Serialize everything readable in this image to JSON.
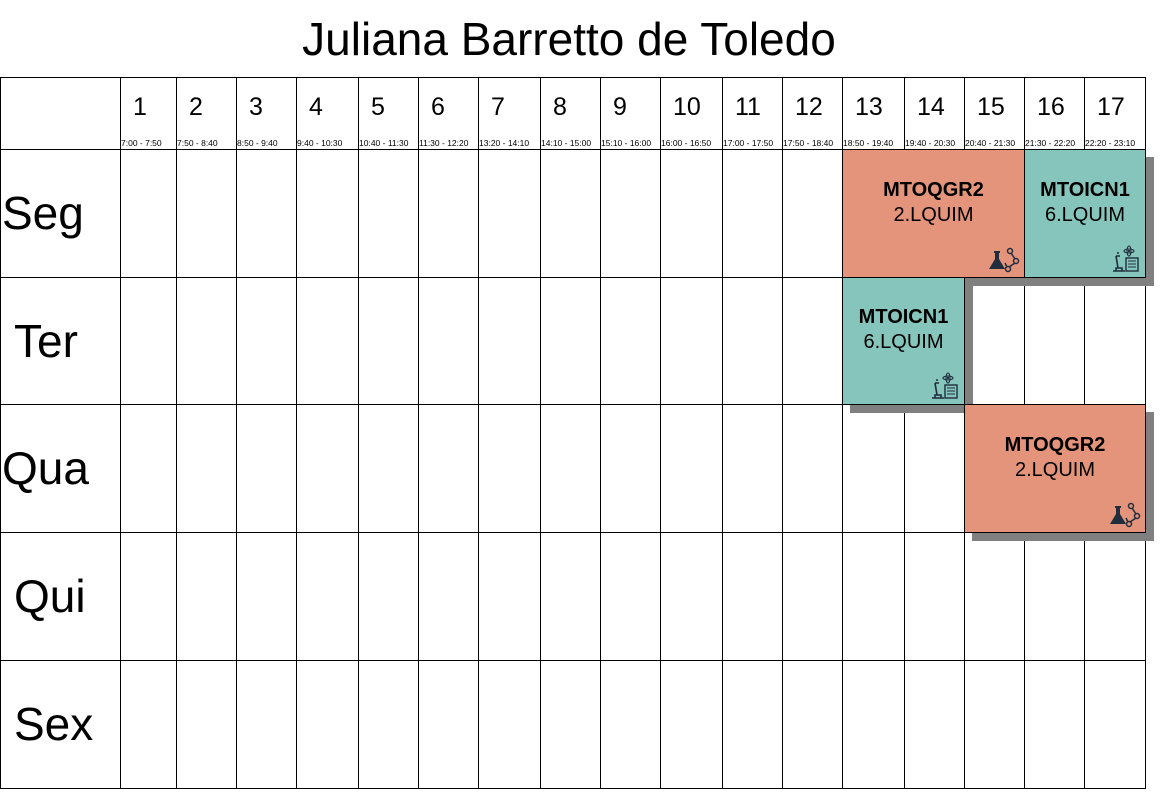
{
  "title": "Juliana Barretto de Toledo",
  "slots": [
    {
      "num": "1",
      "time": "7:00 - 7:50"
    },
    {
      "num": "2",
      "time": "7:50 - 8:40"
    },
    {
      "num": "3",
      "time": "8:50 - 9:40"
    },
    {
      "num": "4",
      "time": "9:40 - 10:30"
    },
    {
      "num": "5",
      "time": "10:40 - 11:30"
    },
    {
      "num": "6",
      "time": "11:30 - 12:20"
    },
    {
      "num": "7",
      "time": "13:20 - 14:10"
    },
    {
      "num": "8",
      "time": "14:10 - 15:00"
    },
    {
      "num": "9",
      "time": "15:10 - 16:00"
    },
    {
      "num": "10",
      "time": "16:00 - 16:50"
    },
    {
      "num": "11",
      "time": "17:00 - 17:50"
    },
    {
      "num": "12",
      "time": "17:50 - 18:40"
    },
    {
      "num": "13",
      "time": "18:50 - 19:40"
    },
    {
      "num": "14",
      "time": "19:40 - 20:30"
    },
    {
      "num": "15",
      "time": "20:40 - 21:30"
    },
    {
      "num": "16",
      "time": "21:30 - 22:20"
    },
    {
      "num": "17",
      "time": "22:20 - 23:10"
    }
  ],
  "days": [
    "Seg",
    "Ter",
    "Qua",
    "Qui",
    "Sex"
  ],
  "classes": [
    {
      "day": 0,
      "start_slot": 13,
      "end_slot": 15,
      "code": "MTOQGR2",
      "room": "2.LQUIM",
      "color": "#e4947a",
      "icon": "chemistry-icon"
    },
    {
      "day": 0,
      "start_slot": 16,
      "end_slot": 17,
      "code": "MTOICN1",
      "room": "6.LQUIM",
      "color": "#86c5bc",
      "icon": "lab-science-icon"
    },
    {
      "day": 1,
      "start_slot": 13,
      "end_slot": 14,
      "code": "MTOICN1",
      "room": "6.LQUIM",
      "color": "#86c5bc",
      "icon": "lab-science-icon"
    },
    {
      "day": 2,
      "start_slot": 15,
      "end_slot": 17,
      "code": "MTOQGR2",
      "room": "2.LQUIM",
      "color": "#e4947a",
      "icon": "chemistry-icon"
    }
  ]
}
